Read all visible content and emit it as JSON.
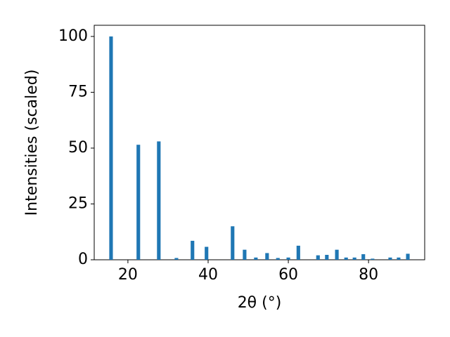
{
  "chart_data": {
    "type": "bar",
    "xlabel": "2θ (°)",
    "ylabel": "Intensities (scaled)",
    "x": [
      15.8,
      22.6,
      27.7,
      32.1,
      36.1,
      39.6,
      46.1,
      49.1,
      51.9,
      54.7,
      57.4,
      60.0,
      62.5,
      67.4,
      69.6,
      72.1,
      74.4,
      76.5,
      78.7,
      81.0,
      85.4,
      87.5,
      89.8
    ],
    "values": [
      100,
      51.5,
      53,
      0.8,
      8.5,
      5.8,
      15,
      4.5,
      1,
      3,
      0.8,
      1,
      6.3,
      2,
      2.2,
      4.5,
      1,
      1,
      2.5,
      0.5,
      1,
      1,
      2.7
    ],
    "color": "#1f77b4",
    "xlim": [
      11.6,
      94.0
    ],
    "xticks": [
      20,
      40,
      60,
      80
    ],
    "ylim": [
      0,
      105
    ],
    "yticks": [
      0,
      25,
      50,
      75,
      100
    ],
    "grid": false
  }
}
